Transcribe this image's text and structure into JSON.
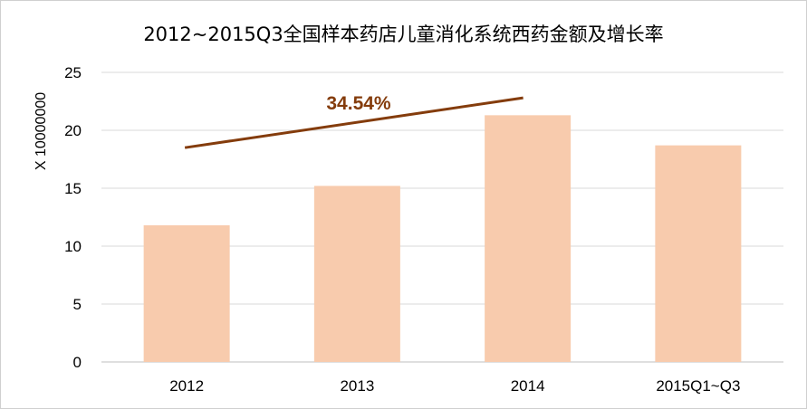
{
  "chart_data": {
    "type": "bar",
    "title": "2012~2015Q3全国样本药店儿童消化系统西药金额及增长率",
    "ylabel": "X 10000000",
    "categories": [
      "2012",
      "2013",
      "2014",
      "2015Q1~Q3"
    ],
    "values": [
      11.8,
      15.2,
      21.3,
      18.7
    ],
    "ylim": [
      0,
      25
    ],
    "yticks": [
      "0",
      "5",
      "10",
      "15",
      "20",
      "25"
    ],
    "grid": true,
    "legend": "none",
    "bar_color": "#f8cbad",
    "annotation": {
      "text": "34.54%",
      "color": "#843c0c",
      "trend": {
        "from": {
          "x": "2012",
          "y": 18.5
        },
        "to": {
          "x": "2014",
          "y": 22.8
        }
      }
    }
  }
}
